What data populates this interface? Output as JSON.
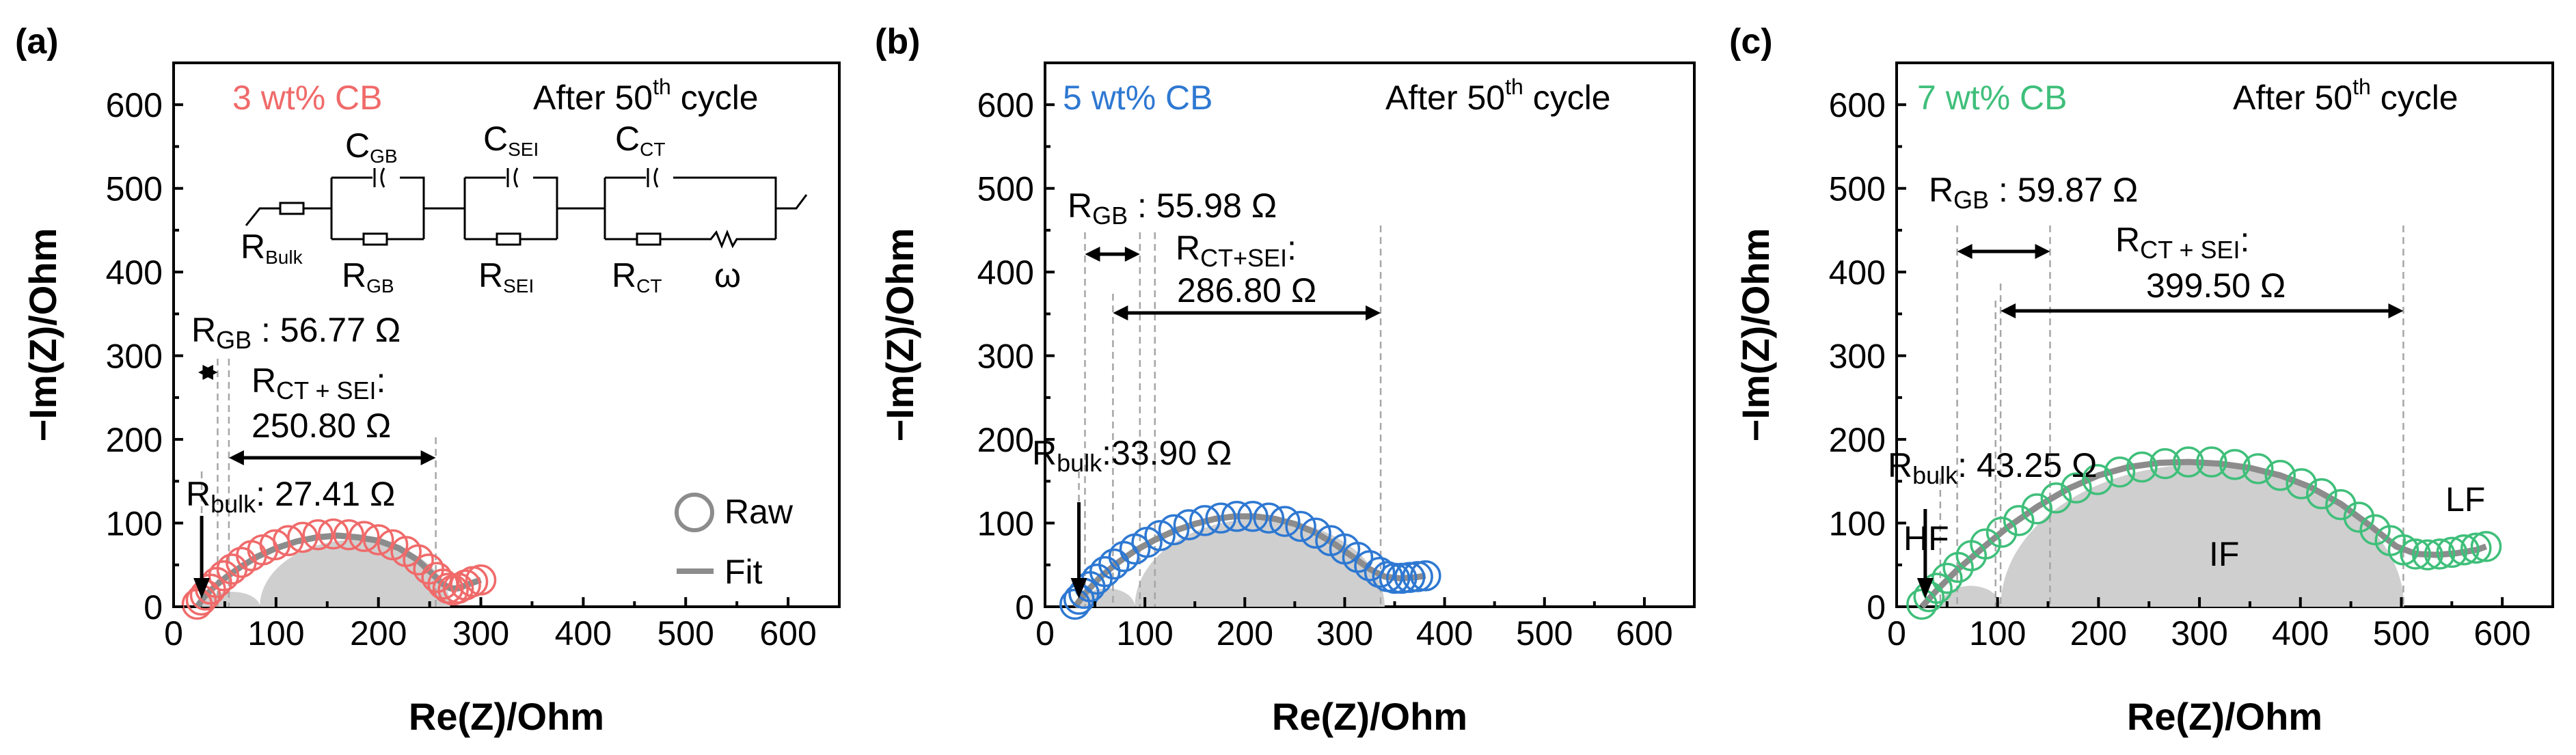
{
  "chart_data": [
    {
      "type": "scatter",
      "panel_label": "(a)",
      "title": "3 wt% CB",
      "title_color": "#f06a6a",
      "cycle_text": "After 50",
      "cycle_sup": "th",
      "cycle_tail": " cycle",
      "xlabel": "Re(Z)/Ohm",
      "ylabel": "−Im(Z)/Ohm",
      "xlim": [
        0,
        650
      ],
      "ylim": [
        0,
        650
      ],
      "xticks": [
        "0",
        "100",
        "200",
        "300",
        "400",
        "500",
        "600"
      ],
      "yticks": [
        "0",
        "100",
        "200",
        "300",
        "400",
        "500",
        "600"
      ],
      "series": [
        {
          "name": "Raw",
          "marker": "open-circle",
          "color": "#f06a6a",
          "x": [
            23,
            27,
            31,
            36,
            42,
            49,
            57,
            66,
            76,
            87,
            99,
            112,
            126,
            141,
            156,
            171,
            186,
            200,
            214,
            227,
            239,
            249,
            257,
            263,
            268,
            273,
            278,
            285,
            292,
            300
          ],
          "y": [
            3,
            8,
            14,
            21,
            29,
            37,
            45,
            53,
            61,
            68,
            74,
            79,
            83,
            86,
            87,
            86,
            84,
            80,
            74,
            66,
            56,
            45,
            35,
            27,
            22,
            20,
            22,
            26,
            30,
            32
          ]
        },
        {
          "name": "Fit",
          "marker": "line",
          "color": "#8c8c8c",
          "x": [
            23,
            30,
            40,
            52,
            66,
            82,
            100,
            120,
            140,
            160,
            180,
            200,
            220,
            238,
            252,
            262,
            270,
            278,
            288,
            300
          ],
          "y": [
            0,
            12,
            24,
            36,
            48,
            60,
            70,
            78,
            83,
            85,
            83,
            79,
            70,
            56,
            40,
            28,
            22,
            22,
            27,
            32
          ]
        }
      ],
      "shaded_arcs": [
        {
          "from": 27.41,
          "to": 84.18,
          "height": 18
        },
        {
          "from": 84.18,
          "to": 270,
          "height": 80
        }
      ],
      "annotations": {
        "rgb_label": "R",
        "rgb_sub": "GB",
        "rgb_value": " : 56.77 Ω",
        "rct_label": "R",
        "rct_sub": "CT + SEI",
        "rct_colon": ":",
        "rct_value": "250.80 Ω",
        "rbulk_label": "R",
        "rbulk_sub": "bulk",
        "rbulk_value": ": 27.41 Ω"
      },
      "markers_x": {
        "bulk": 27.41,
        "gb_end": 43,
        "ct_start": 54,
        "ct_end": 256
      },
      "legend": {
        "raw": "Raw",
        "fit": "Fit"
      },
      "circuit": {
        "c_gb": "C",
        "c_gb_sub": "GB",
        "c_sei": "C",
        "c_sei_sub": "SEI",
        "c_ct": "C",
        "c_ct_sub": "CT",
        "r_bulk": "R",
        "r_bulk_sub": "Bulk",
        "r_gb": "R",
        "r_gb_sub": "GB",
        "r_sei": "R",
        "r_sei_sub": "SEI",
        "r_ct": "R",
        "r_ct_sub": "CT",
        "warburg": "ω"
      }
    },
    {
      "type": "scatter",
      "panel_label": "(b)",
      "title": "5 wt% CB",
      "title_color": "#2e78d2",
      "cycle_text": "After 50",
      "cycle_sup": "th",
      "cycle_tail": " cycle",
      "xlabel": "Re(Z)/Ohm",
      "ylabel": "−Im(Z)/Ohm",
      "xlim": [
        0,
        650
      ],
      "ylim": [
        0,
        650
      ],
      "xticks": [
        "0",
        "100",
        "200",
        "300",
        "400",
        "500",
        "600"
      ],
      "yticks": [
        "0",
        "100",
        "200",
        "300",
        "400",
        "500",
        "600"
      ],
      "series": [
        {
          "name": "Raw",
          "marker": "open-circle",
          "color": "#2e78d2",
          "x": [
            30,
            34,
            39,
            45,
            52,
            60,
            69,
            79,
            90,
            102,
            115,
            129,
            144,
            160,
            176,
            192,
            208,
            224,
            240,
            256,
            271,
            286,
            300,
            313,
            325,
            335,
            343,
            350,
            357,
            365,
            373,
            381
          ],
          "y": [
            3,
            9,
            16,
            24,
            33,
            42,
            51,
            60,
            69,
            77,
            85,
            92,
            98,
            103,
            106,
            108,
            108,
            106,
            102,
            96,
            88,
            79,
            69,
            59,
            49,
            41,
            36,
            34,
            34,
            35,
            36,
            37
          ]
        },
        {
          "name": "Fit",
          "marker": "line",
          "color": "#8c8c8c",
          "x": [
            30,
            40,
            55,
            72,
            90,
            110,
            130,
            150,
            170,
            190,
            210,
            230,
            250,
            270,
            290,
            310,
            325,
            340,
            355,
            370,
            381
          ],
          "y": [
            0,
            16,
            35,
            52,
            67,
            80,
            91,
            99,
            105,
            108,
            108,
            105,
            99,
            89,
            75,
            58,
            45,
            36,
            34,
            35,
            37
          ]
        }
      ],
      "shaded_arcs": [
        {
          "from": 33.9,
          "to": 89.88,
          "height": 22
        },
        {
          "from": 89.88,
          "to": 340,
          "height": 105
        }
      ],
      "annotations": {
        "rgb_label": "R",
        "rgb_sub": "GB",
        "rgb_value": " : 55.98 Ω",
        "rct_label": "R",
        "rct_sub": "CT+SEI",
        "rct_colon": ":",
        "rct_value": "286.80 Ω",
        "rbulk_label": "R",
        "rbulk_sub": "bulk",
        "rbulk_value": ":33.90 Ω"
      },
      "markers_x": {
        "bulk": 33.9,
        "gb_start": 40,
        "gb_end": 95,
        "ct_start": 68,
        "ct_end": 336,
        "extra": 110
      }
    },
    {
      "type": "scatter",
      "panel_label": "(c)",
      "title": "7 wt% CB",
      "title_color": "#3fbf7a",
      "cycle_text": "After 50",
      "cycle_sup": "th",
      "cycle_tail": " cycle",
      "xlabel": "Re(Z)/Ohm",
      "ylabel": "−Im(Z)/Ohm",
      "xlim": [
        0,
        650
      ],
      "ylim": [
        0,
        650
      ],
      "xticks": [
        "0",
        "100",
        "200",
        "300",
        "400",
        "500",
        "600"
      ],
      "yticks": [
        "0",
        "100",
        "200",
        "300",
        "400",
        "500",
        "600"
      ],
      "series": [
        {
          "name": "Raw",
          "marker": "open-circle",
          "color": "#3fbf7a",
          "x": [
            25,
            32,
            40,
            50,
            61,
            74,
            88,
            104,
            121,
            139,
            158,
            178,
            199,
            221,
            243,
            266,
            289,
            312,
            335,
            358,
            380,
            401,
            421,
            440,
            458,
            474,
            489,
            502,
            514,
            526,
            538,
            550,
            562,
            574,
            584
          ],
          "y": [
            3,
            12,
            22,
            34,
            47,
            61,
            75,
            89,
            103,
            117,
            130,
            142,
            152,
            161,
            167,
            171,
            173,
            173,
            170,
            165,
            157,
            147,
            135,
            122,
            107,
            92,
            79,
            68,
            63,
            62,
            63,
            65,
            68,
            70,
            72
          ]
        },
        {
          "name": "Fit",
          "marker": "line",
          "color": "#8c8c8c",
          "x": [
            25,
            40,
            60,
            85,
            110,
            140,
            170,
            200,
            230,
            260,
            290,
            320,
            350,
            380,
            410,
            440,
            470,
            495,
            515,
            535,
            555,
            575,
            584
          ],
          "y": [
            0,
            20,
            44,
            70,
            95,
            120,
            141,
            157,
            167,
            172,
            173,
            171,
            166,
            157,
            143,
            123,
            96,
            72,
            63,
            62,
            64,
            68,
            72
          ]
        }
      ],
      "shaded_arcs": [
        {
          "from": 43.25,
          "to": 103.12,
          "height": 25
        },
        {
          "from": 103.12,
          "to": 502.62,
          "height": 170
        }
      ],
      "annotations": {
        "rgb_label": "R",
        "rgb_sub": "GB",
        "rgb_value": " : 59.87 Ω",
        "rct_label": "R",
        "rct_sub": "CT + SEI",
        "rct_colon": ":",
        "rct_value": "399.50 Ω",
        "rbulk_label": "R",
        "rbulk_sub": "bulk",
        "rbulk_value": ": 43.25 Ω",
        "hf": "HF",
        "if": "IF",
        "lf": "LF"
      },
      "markers_x": {
        "bulk": 43.25,
        "gb_start": 60,
        "gb_end": 152,
        "ct_start": 103,
        "ct_end": 502,
        "extra": 98
      }
    }
  ]
}
